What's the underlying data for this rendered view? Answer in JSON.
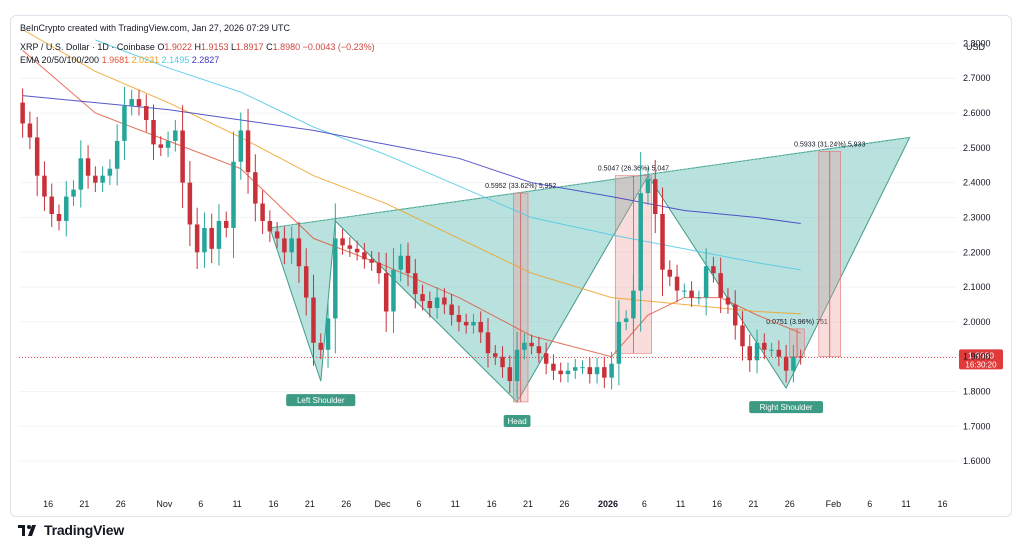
{
  "header": {
    "credit": "BeInCrypto created with TradingView.com, Jan 27, 2026 07:29 UTC",
    "symbol": "XRP / U.S. Dollar · 1D · Coinbase",
    "open_label": "O",
    "open": "1.9022",
    "high_label": "H",
    "high": "1.9153",
    "low_label": "L",
    "low": "1.8917",
    "close_label": "C",
    "close": "1.8980",
    "change": "−0.0043 (−0.23%)",
    "ema_label": "EMA 20/50/100/200",
    "ema_values": [
      "1.9681",
      "2.0231",
      "2.1495",
      "2.2827"
    ]
  },
  "currency": "USD",
  "footer": {
    "logo_text": "TradingView"
  },
  "colors": {
    "up": "#26a69a",
    "down": "#c8303a",
    "ema20": "#e0573d",
    "ema50": "#f0a020",
    "ema100": "#4fc8e6",
    "ema200": "#3a3ac0",
    "pattern_fill": "#26a69a",
    "neckline": "#7fc8bb",
    "measure": "#ef9a9a",
    "label_bg": "#3d9a84",
    "price_badge": "#e03a3a"
  },
  "chart_data": {
    "type": "candlestick",
    "symbol": "XRP / U.S. Dollar",
    "timeframe": "1D",
    "exchange": "Coinbase",
    "ylim": [
      1.5,
      2.85
    ],
    "y_ticks": [
      1.6,
      1.7,
      1.8,
      1.9,
      2.0,
      2.1,
      2.2,
      2.3,
      2.4,
      2.5,
      2.6,
      2.7,
      2.8
    ],
    "y_tick_labels": [
      "1.6000",
      "1.7000",
      "1.8000",
      "1.9000",
      "2.0000",
      "2.1000",
      "2.2000",
      "2.3000",
      "2.4000",
      "2.5000",
      "2.6000",
      "2.7000",
      "2.8000"
    ],
    "x_start": "2025-10-12",
    "x_end": "2026-02-18",
    "x_ticks": [
      {
        "date": "2025-10-16",
        "label": "16"
      },
      {
        "date": "2025-10-21",
        "label": "21"
      },
      {
        "date": "2025-10-26",
        "label": "26"
      },
      {
        "date": "2025-11-01",
        "label": "Nov"
      },
      {
        "date": "2025-11-06",
        "label": "6"
      },
      {
        "date": "2025-11-11",
        "label": "11"
      },
      {
        "date": "2025-11-16",
        "label": "16"
      },
      {
        "date": "2025-11-21",
        "label": "21"
      },
      {
        "date": "2025-11-26",
        "label": "26"
      },
      {
        "date": "2025-12-01",
        "label": "Dec"
      },
      {
        "date": "2025-12-06",
        "label": "6"
      },
      {
        "date": "2025-12-11",
        "label": "11"
      },
      {
        "date": "2025-12-16",
        "label": "16"
      },
      {
        "date": "2025-12-21",
        "label": "21"
      },
      {
        "date": "2025-12-26",
        "label": "26"
      },
      {
        "date": "2026-01-01",
        "label": "2026",
        "bold": true
      },
      {
        "date": "2026-01-06",
        "label": "6"
      },
      {
        "date": "2026-01-11",
        "label": "11"
      },
      {
        "date": "2026-01-16",
        "label": "16"
      },
      {
        "date": "2026-01-21",
        "label": "21"
      },
      {
        "date": "2026-01-26",
        "label": "26"
      },
      {
        "date": "2026-02-01",
        "label": "Feb"
      },
      {
        "date": "2026-02-06",
        "label": "6"
      },
      {
        "date": "2026-02-11",
        "label": "11"
      },
      {
        "date": "2026-02-16",
        "label": "16"
      }
    ],
    "closes": [
      [
        "2025-10-12",
        2.57
      ],
      [
        "2025-10-13",
        2.53
      ],
      [
        "2025-10-14",
        2.42
      ],
      [
        "2025-10-15",
        2.36
      ],
      [
        "2025-10-16",
        2.31
      ],
      [
        "2025-10-17",
        2.29
      ],
      [
        "2025-10-18",
        2.36
      ],
      [
        "2025-10-19",
        2.38
      ],
      [
        "2025-10-20",
        2.47
      ],
      [
        "2025-10-21",
        2.42
      ],
      [
        "2025-10-22",
        2.4
      ],
      [
        "2025-10-23",
        2.42
      ],
      [
        "2025-10-24",
        2.44
      ],
      [
        "2025-10-25",
        2.52
      ],
      [
        "2025-10-26",
        2.62
      ],
      [
        "2025-10-27",
        2.64
      ],
      [
        "2025-10-28",
        2.62
      ],
      [
        "2025-10-29",
        2.58
      ],
      [
        "2025-10-30",
        2.51
      ],
      [
        "2025-10-31",
        2.5
      ],
      [
        "2025-11-01",
        2.52
      ],
      [
        "2025-11-02",
        2.55
      ],
      [
        "2025-11-03",
        2.4
      ],
      [
        "2025-11-04",
        2.28
      ],
      [
        "2025-11-05",
        2.2
      ],
      [
        "2025-11-06",
        2.27
      ],
      [
        "2025-11-07",
        2.21
      ],
      [
        "2025-11-08",
        2.29
      ],
      [
        "2025-11-09",
        2.27
      ],
      [
        "2025-11-10",
        2.46
      ],
      [
        "2025-11-11",
        2.55
      ],
      [
        "2025-11-12",
        2.43
      ],
      [
        "2025-11-13",
        2.34
      ],
      [
        "2025-11-14",
        2.29
      ],
      [
        "2025-11-15",
        2.26
      ],
      [
        "2025-11-16",
        2.24
      ],
      [
        "2025-11-17",
        2.2
      ],
      [
        "2025-11-18",
        2.24
      ],
      [
        "2025-11-19",
        2.16
      ],
      [
        "2025-11-20",
        2.07
      ],
      [
        "2025-11-21",
        1.94
      ],
      [
        "2025-11-22",
        1.92
      ],
      [
        "2025-11-23",
        2.01
      ],
      [
        "2025-11-24",
        2.24
      ],
      [
        "2025-11-25",
        2.22
      ],
      [
        "2025-11-26",
        2.21
      ],
      [
        "2025-11-27",
        2.2
      ],
      [
        "2025-11-28",
        2.18
      ],
      [
        "2025-11-29",
        2.17
      ],
      [
        "2025-11-30",
        2.14
      ],
      [
        "2025-12-01",
        2.03
      ],
      [
        "2025-12-02",
        2.15
      ],
      [
        "2025-12-03",
        2.19
      ],
      [
        "2025-12-04",
        2.14
      ],
      [
        "2025-12-05",
        2.08
      ],
      [
        "2025-12-06",
        2.06
      ],
      [
        "2025-12-07",
        2.04
      ],
      [
        "2025-12-08",
        2.07
      ],
      [
        "2025-12-09",
        2.05
      ],
      [
        "2025-12-10",
        2.02
      ],
      [
        "2025-12-11",
        2.0
      ],
      [
        "2025-12-12",
        1.99
      ],
      [
        "2025-12-13",
        2.0
      ],
      [
        "2025-12-14",
        1.97
      ],
      [
        "2025-12-15",
        1.91
      ],
      [
        "2025-12-16",
        1.9
      ],
      [
        "2025-12-17",
        1.87
      ],
      [
        "2025-12-18",
        1.83
      ],
      [
        "2025-12-19",
        1.92
      ],
      [
        "2025-12-20",
        1.94
      ],
      [
        "2025-12-21",
        1.93
      ],
      [
        "2025-12-22",
        1.91
      ],
      [
        "2025-12-23",
        1.88
      ],
      [
        "2025-12-24",
        1.86
      ],
      [
        "2025-12-25",
        1.85
      ],
      [
        "2025-12-26",
        1.86
      ],
      [
        "2025-12-27",
        1.87
      ],
      [
        "2025-12-28",
        1.87
      ],
      [
        "2025-12-29",
        1.85
      ],
      [
        "2025-12-30",
        1.87
      ],
      [
        "2025-12-31",
        1.84
      ],
      [
        "2026-01-01",
        1.88
      ],
      [
        "2026-01-02",
        2.0
      ],
      [
        "2026-01-03",
        2.01
      ],
      [
        "2026-01-04",
        2.09
      ],
      [
        "2026-01-05",
        2.37
      ],
      [
        "2026-01-06",
        2.41
      ],
      [
        "2026-01-07",
        2.31
      ],
      [
        "2026-01-08",
        2.15
      ],
      [
        "2026-01-09",
        2.13
      ],
      [
        "2026-01-10",
        2.09
      ],
      [
        "2026-01-11",
        2.09
      ],
      [
        "2026-01-12",
        2.07
      ],
      [
        "2026-01-13",
        2.07
      ],
      [
        "2026-01-14",
        2.16
      ],
      [
        "2026-01-15",
        2.14
      ],
      [
        "2026-01-16",
        2.07
      ],
      [
        "2026-01-17",
        2.05
      ],
      [
        "2026-01-18",
        1.99
      ],
      [
        "2026-01-19",
        1.93
      ],
      [
        "2026-01-20",
        1.89
      ],
      [
        "2026-01-21",
        1.94
      ],
      [
        "2026-01-22",
        1.92
      ],
      [
        "2026-01-23",
        1.92
      ],
      [
        "2026-01-24",
        1.9
      ],
      [
        "2026-01-25",
        1.86
      ],
      [
        "2026-01-26",
        1.9
      ],
      [
        "2026-01-27",
        1.898
      ]
    ],
    "ema": [
      {
        "name": "EMA 20",
        "value": 1.9681,
        "points": [
          [
            "2025-10-12",
            2.78
          ],
          [
            "2025-10-22",
            2.6
          ],
          [
            "2025-11-01",
            2.52
          ],
          [
            "2025-11-11",
            2.44
          ],
          [
            "2025-11-21",
            2.24
          ],
          [
            "2025-12-01",
            2.16
          ],
          [
            "2025-12-11",
            2.07
          ],
          [
            "2025-12-21",
            1.96
          ],
          [
            "2026-01-01",
            1.9
          ],
          [
            "2026-01-06",
            2.02
          ],
          [
            "2026-01-11",
            2.07
          ],
          [
            "2026-01-16",
            2.07
          ],
          [
            "2026-01-21",
            2.02
          ],
          [
            "2026-01-27",
            1.968
          ]
        ]
      },
      {
        "name": "EMA 50",
        "value": 2.0231,
        "points": [
          [
            "2025-10-12",
            2.84
          ],
          [
            "2025-10-22",
            2.72
          ],
          [
            "2025-11-01",
            2.63
          ],
          [
            "2025-11-11",
            2.53
          ],
          [
            "2025-11-21",
            2.42
          ],
          [
            "2025-12-01",
            2.34
          ],
          [
            "2025-12-11",
            2.24
          ],
          [
            "2025-12-21",
            2.14
          ],
          [
            "2026-01-01",
            2.07
          ],
          [
            "2026-01-11",
            2.05
          ],
          [
            "2026-01-21",
            2.03
          ],
          [
            "2026-01-27",
            2.023
          ]
        ]
      },
      {
        "name": "EMA 100",
        "value": 2.1495,
        "points": [
          [
            "2025-10-22",
            2.81
          ],
          [
            "2025-11-01",
            2.73
          ],
          [
            "2025-11-11",
            2.66
          ],
          [
            "2025-11-21",
            2.56
          ],
          [
            "2025-12-01",
            2.48
          ],
          [
            "2025-12-11",
            2.39
          ],
          [
            "2025-12-21",
            2.3
          ],
          [
            "2026-01-01",
            2.25
          ],
          [
            "2026-01-11",
            2.21
          ],
          [
            "2026-01-21",
            2.17
          ],
          [
            "2026-01-27",
            2.1495
          ]
        ]
      },
      {
        "name": "EMA 200",
        "value": 2.2827,
        "points": [
          [
            "2025-10-12",
            2.65
          ],
          [
            "2025-10-22",
            2.63
          ],
          [
            "2025-11-01",
            2.61
          ],
          [
            "2025-11-11",
            2.58
          ],
          [
            "2025-11-21",
            2.55
          ],
          [
            "2025-12-01",
            2.51
          ],
          [
            "2025-12-11",
            2.47
          ],
          [
            "2025-12-21",
            2.4
          ],
          [
            "2026-01-01",
            2.36
          ],
          [
            "2026-01-11",
            2.32
          ],
          [
            "2026-01-21",
            2.3
          ],
          [
            "2026-01-27",
            2.2827
          ]
        ]
      }
    ],
    "pattern": {
      "name": "Inverse head and shoulders",
      "points": [
        [
          "2025-11-15",
          2.27
        ],
        [
          "2025-11-22",
          1.83
        ],
        [
          "2025-11-24",
          2.29
        ],
        [
          "2025-12-19",
          1.77
        ],
        [
          "2026-01-06",
          2.42
        ],
        [
          "2026-01-25",
          1.81
        ],
        [
          "2026-02-11",
          2.53
        ]
      ],
      "neckline": [
        [
          "2025-11-15",
          2.27
        ],
        [
          "2026-02-11",
          2.53
        ]
      ],
      "labels": [
        {
          "text": "Left Shoulder",
          "date": "2025-11-22",
          "price": 1.83
        },
        {
          "text": "Head",
          "date": "2025-12-19",
          "price": 1.77
        },
        {
          "text": "Right Shoulder",
          "date": "2026-01-25",
          "price": 1.81
        }
      ]
    },
    "measurements": [
      {
        "text": "0.5952 (33.62%) 5,952",
        "date": "2025-12-19",
        "date_end": "2025-12-20",
        "from": 1.77,
        "to": 2.37
      },
      {
        "text": "0.5047 (26.36%) 5,047",
        "date": "2026-01-02",
        "date_end": "2026-01-06",
        "from": 1.91,
        "to": 2.42
      },
      {
        "text": "0.0751 (3.96%) 751",
        "date": "2026-01-26",
        "date_end": "2026-01-27",
        "from": 1.9,
        "to": 1.98
      },
      {
        "text": "0.5933 (31.24%) 5,933",
        "date": "2026-01-30",
        "date_end": "2026-02-01",
        "from": 1.9,
        "to": 2.49
      }
    ],
    "last_price": {
      "value": "1.8980",
      "countdown": "16:30:20"
    }
  }
}
